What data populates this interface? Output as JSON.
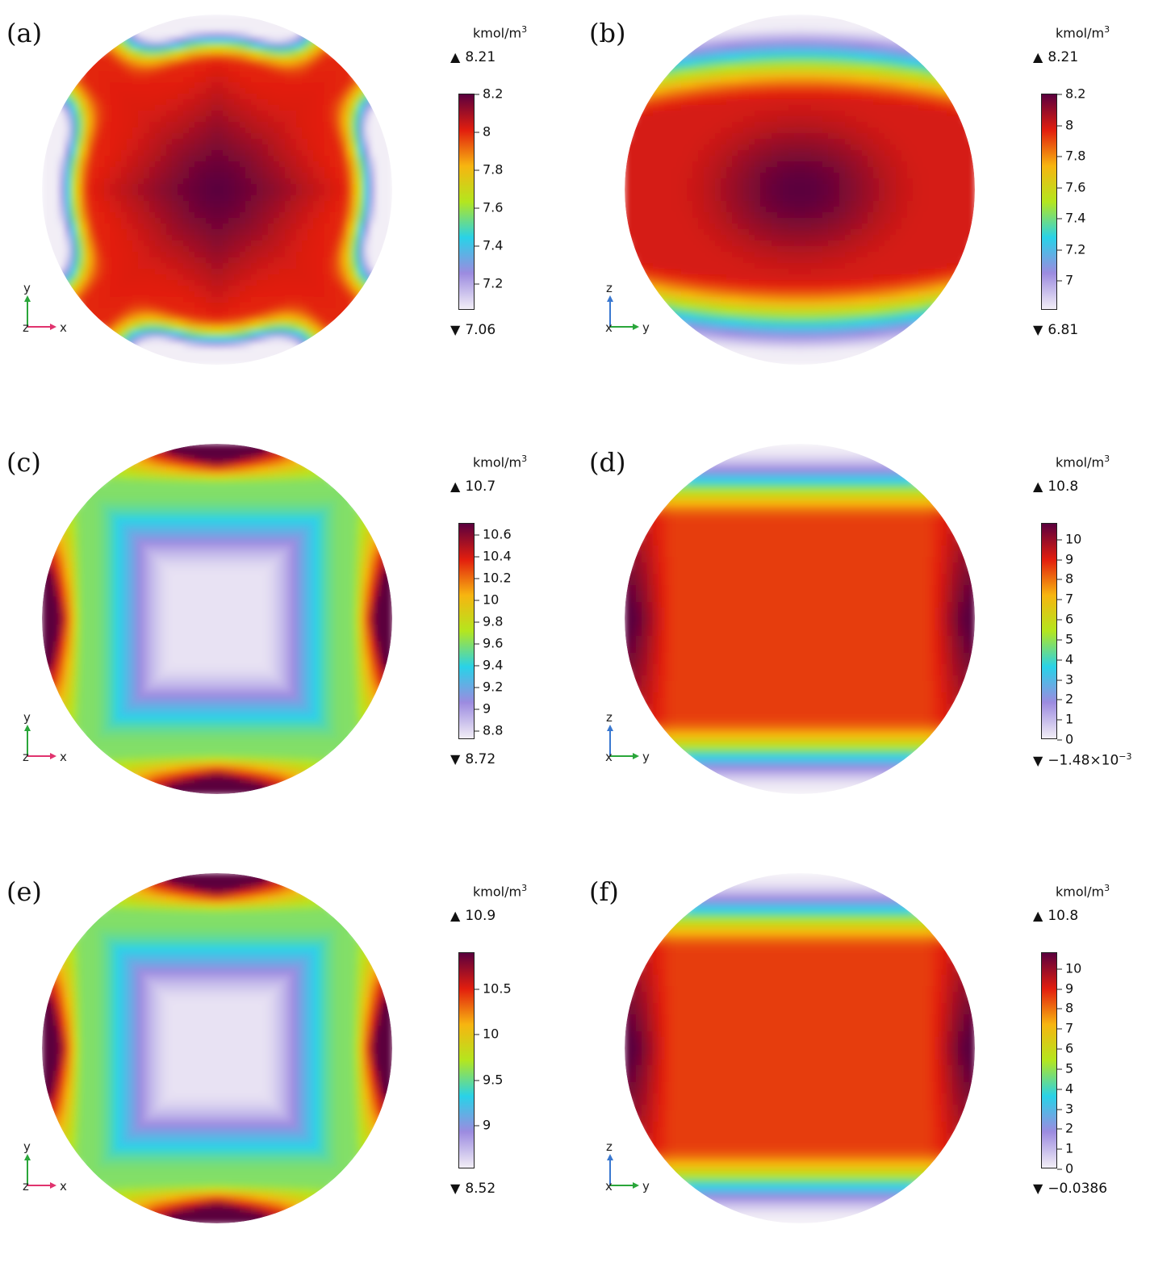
{
  "colormap": [
    "#f2eef6",
    "#9c8be0",
    "#29d2e8",
    "#b4e61e",
    "#f7b510",
    "#e21e0e",
    "#5b003e"
  ],
  "chart_data": [
    {
      "type": "heatmap",
      "panel_label": "(a)",
      "unit": "kmol/m",
      "unit_sup": "3",
      "max_label": "8.21",
      "min_label": "7.06",
      "max_value": 8.21,
      "min_value": 7.06,
      "colorbar_range": [
        7.06,
        8.2
      ],
      "ticks": [
        "8.2",
        "8",
        "7.8",
        "7.6",
        "7.4",
        "7.2"
      ],
      "tick_values": [
        8.2,
        8.0,
        7.8,
        7.6,
        7.4,
        7.2
      ],
      "axes": {
        "up": "y",
        "right": "x",
        "out": "z"
      },
      "field": "x-shape",
      "field_low": 7.06,
      "field_high": 8.2
    },
    {
      "type": "heatmap",
      "panel_label": "(b)",
      "unit": "kmol/m",
      "unit_sup": "3",
      "max_label": "8.21",
      "min_label": "6.81",
      "max_value": 8.21,
      "min_value": 6.81,
      "colorbar_range": [
        6.81,
        8.2
      ],
      "ticks": [
        "8.2",
        "8",
        "7.8",
        "7.6",
        "7.4",
        "7.2",
        "7"
      ],
      "tick_values": [
        8.2,
        8.0,
        7.8,
        7.6,
        7.4,
        7.2,
        7.0
      ],
      "axes": {
        "up": "z",
        "right": "y",
        "out": "x"
      },
      "field": "horizontal-lens",
      "field_low": 6.81,
      "field_high": 8.2
    },
    {
      "type": "heatmap",
      "panel_label": "(c)",
      "unit": "kmol/m",
      "unit_sup": "3",
      "max_label": "10.7",
      "min_label": "8.72",
      "max_value": 10.7,
      "min_value": 8.72,
      "colorbar_range": [
        8.72,
        10.7
      ],
      "ticks": [
        "10.6",
        "10.4",
        "10.2",
        "10",
        "9.8",
        "9.6",
        "9.4",
        "9.2",
        "9",
        "8.8"
      ],
      "tick_values": [
        10.6,
        10.4,
        10.2,
        10.0,
        9.8,
        9.6,
        9.4,
        9.2,
        9.0,
        8.8
      ],
      "axes": {
        "up": "y",
        "right": "x",
        "out": "z"
      },
      "field": "edge-peaks",
      "field_low": 8.72,
      "field_high": 10.7
    },
    {
      "type": "heatmap",
      "panel_label": "(d)",
      "unit": "kmol/m",
      "unit_sup": "3",
      "max_label": "10.8",
      "min_label": "−1.48×10",
      "min_label_sup": "−3",
      "max_value": 10.8,
      "min_value": -0.00148,
      "colorbar_range": [
        0,
        10.8
      ],
      "ticks": [
        "10",
        "9",
        "8",
        "7",
        "6",
        "5",
        "4",
        "3",
        "2",
        "1",
        "0"
      ],
      "tick_values": [
        10,
        9,
        8,
        7,
        6,
        5,
        4,
        3,
        2,
        1,
        0
      ],
      "axes": {
        "up": "z",
        "right": "y",
        "out": "x"
      },
      "field": "horizontal-band",
      "field_low": 0,
      "field_high": 10.8
    },
    {
      "type": "heatmap",
      "panel_label": "(e)",
      "unit": "kmol/m",
      "unit_sup": "3",
      "max_label": "10.9",
      "min_label": "8.52",
      "max_value": 10.9,
      "min_value": 8.52,
      "colorbar_range": [
        8.52,
        10.9
      ],
      "ticks": [
        "10.5",
        "10",
        "9.5",
        "9"
      ],
      "tick_values": [
        10.5,
        10.0,
        9.5,
        9.0
      ],
      "axes": {
        "up": "y",
        "right": "x",
        "out": "z"
      },
      "field": "edge-peaks",
      "field_low": 8.52,
      "field_high": 10.9
    },
    {
      "type": "heatmap",
      "panel_label": "(f)",
      "unit": "kmol/m",
      "unit_sup": "3",
      "max_label": "10.8",
      "min_label": "−0.0386",
      "max_value": 10.8,
      "min_value": -0.0386,
      "colorbar_range": [
        0,
        10.8
      ],
      "ticks": [
        "10",
        "9",
        "8",
        "7",
        "6",
        "5",
        "4",
        "3",
        "2",
        "1",
        "0"
      ],
      "tick_values": [
        10,
        9,
        8,
        7,
        6,
        5,
        4,
        3,
        2,
        1,
        0
      ],
      "axes": {
        "up": "z",
        "right": "y",
        "out": "x"
      },
      "field": "horizontal-band",
      "field_low": 0,
      "field_high": 10.8
    }
  ]
}
